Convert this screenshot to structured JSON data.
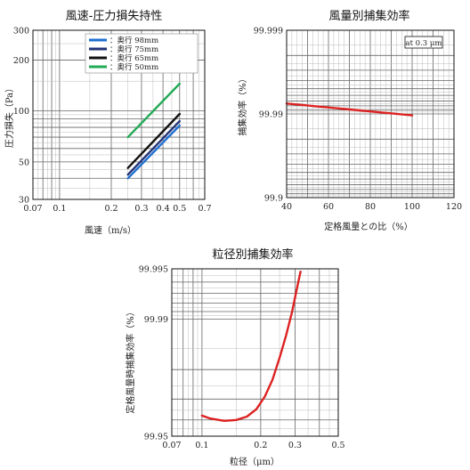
{
  "chart_data": [
    {
      "type": "line",
      "title": "風速-圧力損失持性",
      "xlabel": "風速（m/s）",
      "ylabel": "圧力損失（Pa）",
      "x_scale": "log",
      "y_scale": "log",
      "xlim": [
        0.07,
        0.7
      ],
      "ylim": [
        30,
        300
      ],
      "xticks": [
        "0.07",
        "0.1",
        "0.2",
        "0.3",
        "0.4",
        "0.5",
        "0.7"
      ],
      "xtick_values": [
        0.07,
        0.1,
        0.2,
        0.3,
        0.4,
        0.5,
        0.7
      ],
      "yticks": [
        "30",
        "50",
        "100",
        "200",
        "300"
      ],
      "ytick_values": [
        30,
        50,
        100,
        200,
        300
      ],
      "grid": true,
      "legend_position": "top-right",
      "series": [
        {
          "name": "：奥行 98mm",
          "color": "#1f6fd1",
          "x": [
            0.25,
            0.5
          ],
          "y": [
            40,
            82
          ]
        },
        {
          "name": "：奥行 75mm",
          "color": "#223377",
          "x": [
            0.25,
            0.5
          ],
          "y": [
            42,
            87
          ]
        },
        {
          "name": "：奥行 65mm",
          "color": "#111111",
          "x": [
            0.25,
            0.5
          ],
          "y": [
            46,
            96
          ]
        },
        {
          "name": "：奥行 50mm",
          "color": "#22aa55",
          "x": [
            0.25,
            0.5
          ],
          "y": [
            70,
            145
          ]
        }
      ]
    },
    {
      "type": "line",
      "title": "風量別捕集効率",
      "xlabel": "定格風量との比（%）",
      "ylabel": "捕集効率（%）",
      "x_scale": "linear",
      "y_scale": "log-penetration",
      "xlim": [
        40,
        120
      ],
      "ylim": [
        99.9,
        99.999
      ],
      "xticks": [
        "40",
        "60",
        "80",
        "100",
        "120"
      ],
      "xtick_values": [
        40,
        60,
        80,
        100,
        120
      ],
      "yticks": [
        "99.9",
        "99.99",
        "99.999"
      ],
      "ytick_values": [
        99.9,
        99.99,
        99.999
      ],
      "grid": true,
      "annotation": "at 0.3 μm",
      "series": [
        {
          "color": "#dd2222",
          "x": [
            40,
            100
          ],
          "y": [
            99.9925,
            99.9896
          ]
        }
      ]
    },
    {
      "type": "line",
      "title": "粒径別捕集効率",
      "xlabel": "粒径（μm）",
      "ylabel": "定格風量時捕集効率（%）",
      "x_scale": "log",
      "y_scale": "log-penetration",
      "xlim": [
        0.07,
        0.5
      ],
      "ylim": [
        99.95,
        99.995
      ],
      "xticks": [
        "0.07",
        "0.1",
        "0.2",
        "0.3",
        "0.5"
      ],
      "xtick_values": [
        0.07,
        0.1,
        0.2,
        0.3,
        0.5
      ],
      "yticks": [
        "99.95",
        "99.99",
        "99.995"
      ],
      "ytick_values": [
        99.95,
        99.99,
        99.995
      ],
      "grid": true,
      "series": [
        {
          "color": "#dd2222",
          "x": [
            0.1,
            0.11,
            0.13,
            0.15,
            0.17,
            0.19,
            0.21,
            0.23,
            0.25,
            0.27,
            0.29,
            0.31,
            0.32
          ],
          "y": [
            99.9623,
            99.9608,
            99.9595,
            99.96,
            99.9618,
            99.9655,
            99.971,
            99.977,
            99.983,
            99.9875,
            99.991,
            99.9938,
            99.9948
          ]
        }
      ]
    }
  ]
}
